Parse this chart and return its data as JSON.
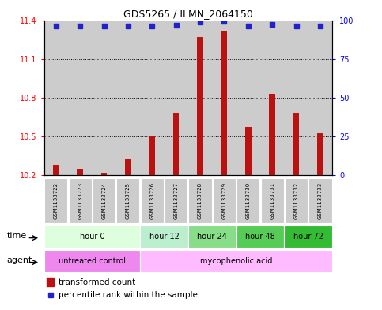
{
  "title": "GDS5265 / ILMN_2064150",
  "samples": [
    "GSM1133722",
    "GSM1133723",
    "GSM1133724",
    "GSM1133725",
    "GSM1133726",
    "GSM1133727",
    "GSM1133728",
    "GSM1133729",
    "GSM1133730",
    "GSM1133731",
    "GSM1133732",
    "GSM1133733"
  ],
  "bar_values": [
    10.28,
    10.25,
    10.22,
    10.33,
    10.5,
    10.68,
    11.27,
    11.32,
    10.57,
    10.83,
    10.68,
    10.53
  ],
  "percentile_values": [
    96,
    96,
    96,
    96,
    96,
    96.5,
    98.5,
    99.5,
    96,
    97,
    96,
    96
  ],
  "ymin": 10.2,
  "ymax": 11.4,
  "yticks": [
    10.2,
    10.5,
    10.8,
    11.1,
    11.4
  ],
  "y2min": 0,
  "y2max": 100,
  "y2ticks": [
    0,
    25,
    50,
    75,
    100
  ],
  "bar_color": "#bb1111",
  "dot_color": "#2222cc",
  "col_bg_even": "#c8c8c8",
  "col_bg_odd": "#c8c8c8",
  "time_groups": [
    {
      "label": "hour 0",
      "start": 0,
      "end": 4,
      "color": "#ddffdd"
    },
    {
      "label": "hour 12",
      "start": 4,
      "end": 6,
      "color": "#bbeecc"
    },
    {
      "label": "hour 24",
      "start": 6,
      "end": 8,
      "color": "#88dd88"
    },
    {
      "label": "hour 48",
      "start": 8,
      "end": 10,
      "color": "#55cc55"
    },
    {
      "label": "hour 72",
      "start": 10,
      "end": 12,
      "color": "#33bb33"
    }
  ],
  "agent_groups": [
    {
      "label": "untreated control",
      "start": 0,
      "end": 4,
      "color": "#ee88ee"
    },
    {
      "label": "mycophenolic acid",
      "start": 4,
      "end": 12,
      "color": "#ffbbff"
    }
  ],
  "legend_bar_label": "transformed count",
  "legend_dot_label": "percentile rank within the sample",
  "time_label": "time",
  "agent_label": "agent"
}
